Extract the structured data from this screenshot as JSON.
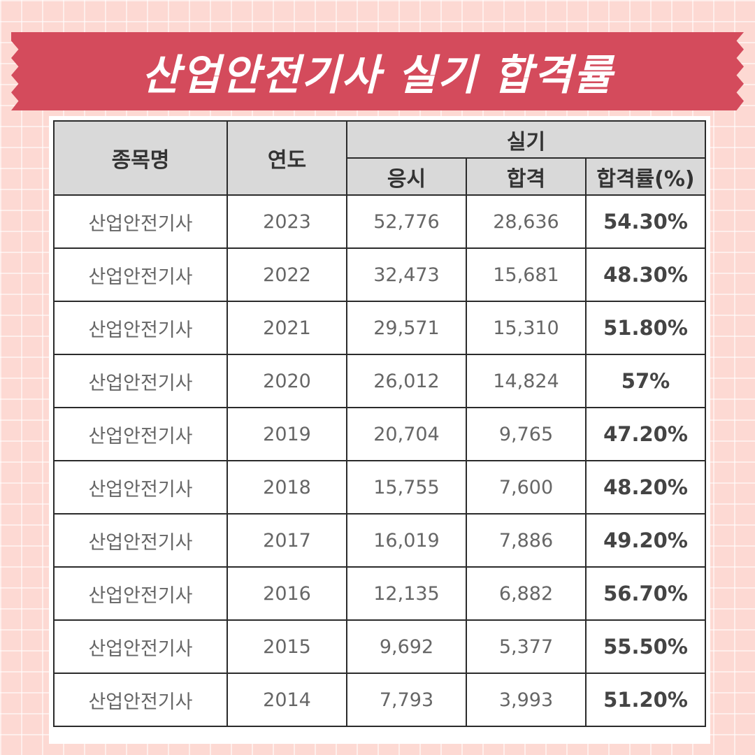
{
  "banner": {
    "title": "산업안전기사 실기 합격률"
  },
  "table": {
    "headers": {
      "name": "종목명",
      "year": "연도",
      "group": "실기",
      "applicants": "응시",
      "passed": "합격",
      "rate": "합격률(%)"
    },
    "rows": [
      {
        "name": "산업안전기사",
        "year": "2023",
        "applicants": "52,776",
        "passed": "28,636",
        "rate": "54.30%"
      },
      {
        "name": "산업안전기사",
        "year": "2022",
        "applicants": "32,473",
        "passed": "15,681",
        "rate": "48.30%"
      },
      {
        "name": "산업안전기사",
        "year": "2021",
        "applicants": "29,571",
        "passed": "15,310",
        "rate": "51.80%"
      },
      {
        "name": "산업안전기사",
        "year": "2020",
        "applicants": "26,012",
        "passed": "14,824",
        "rate": "57%"
      },
      {
        "name": "산업안전기사",
        "year": "2019",
        "applicants": "20,704",
        "passed": "9,765",
        "rate": "47.20%"
      },
      {
        "name": "산업안전기사",
        "year": "2018",
        "applicants": "15,755",
        "passed": "7,600",
        "rate": "48.20%"
      },
      {
        "name": "산업안전기사",
        "year": "2017",
        "applicants": "16,019",
        "passed": "7,886",
        "rate": "49.20%"
      },
      {
        "name": "산업안전기사",
        "year": "2016",
        "applicants": "12,135",
        "passed": "6,882",
        "rate": "56.70%"
      },
      {
        "name": "산업안전기사",
        "year": "2015",
        "applicants": "9,692",
        "passed": "5,377",
        "rate": "55.50%"
      },
      {
        "name": "산업안전기사",
        "year": "2014",
        "applicants": "7,793",
        "passed": "3,993",
        "rate": "51.20%"
      }
    ]
  }
}
